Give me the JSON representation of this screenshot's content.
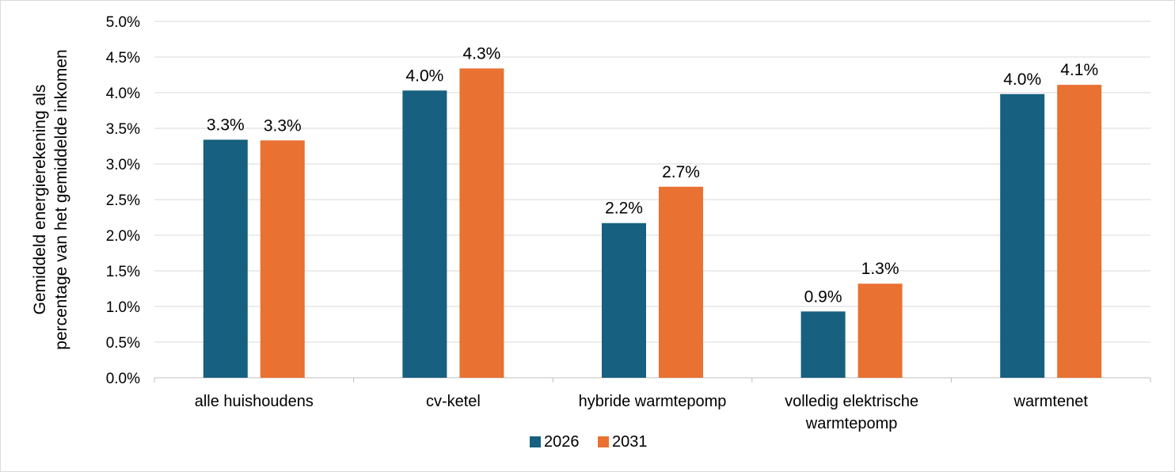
{
  "chart_data": {
    "type": "bar",
    "title": "",
    "xlabel": "",
    "ylabel_lines": [
      "Gemiddeld energierekening als",
      "percentage van het gemiddelde inkomen"
    ],
    "categories": [
      [
        "alle huishoudens"
      ],
      [
        "cv-ketel"
      ],
      [
        "hybride warmtepomp"
      ],
      [
        "volledig elektrische",
        "warmtepomp"
      ],
      [
        "warmtenet"
      ]
    ],
    "series": [
      {
        "name": "2026",
        "color": "#17607f",
        "values": [
          3.34,
          4.03,
          2.17,
          0.93,
          3.98
        ],
        "labels": [
          "3.3%",
          "4.0%",
          "2.2%",
          "0.9%",
          "4.0%"
        ]
      },
      {
        "name": "2031",
        "color": "#e97132",
        "values": [
          3.33,
          4.34,
          2.68,
          1.32,
          4.11
        ],
        "labels": [
          "3.3%",
          "4.3%",
          "2.7%",
          "1.3%",
          "4.1%"
        ]
      }
    ],
    "ylim": [
      0,
      5.0
    ],
    "yticks": [
      {
        "value": 0.0,
        "label": "0.0%"
      },
      {
        "value": 0.5,
        "label": "0.5%"
      },
      {
        "value": 1.0,
        "label": "1.0%"
      },
      {
        "value": 1.5,
        "label": "1.5%"
      },
      {
        "value": 2.0,
        "label": "2.0%"
      },
      {
        "value": 2.5,
        "label": "2.5%"
      },
      {
        "value": 3.0,
        "label": "3.0%"
      },
      {
        "value": 3.5,
        "label": "3.5%"
      },
      {
        "value": 4.0,
        "label": "4.0%"
      },
      {
        "value": 4.5,
        "label": "4.5%"
      },
      {
        "value": 5.0,
        "label": "5.0%"
      }
    ],
    "grid": true,
    "gridline_color": "#d9d9d9",
    "legend_position": "bottom-center"
  }
}
